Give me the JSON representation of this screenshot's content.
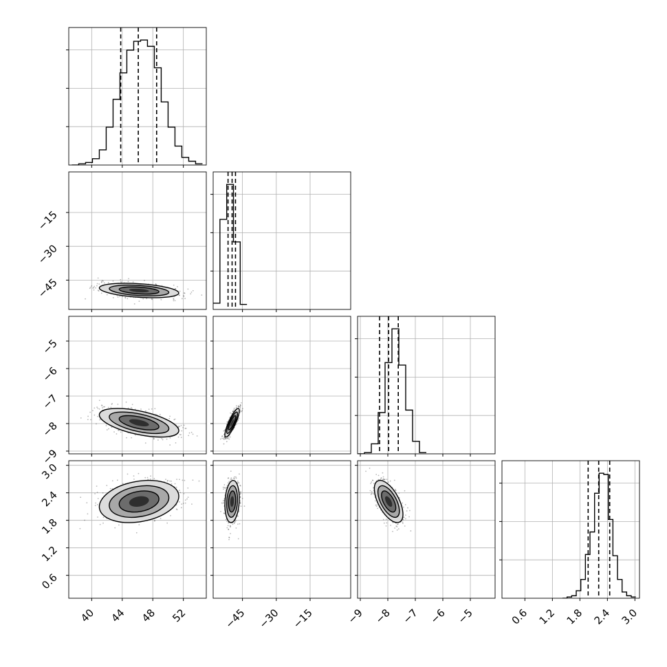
{
  "chart_data": {
    "type": "corner",
    "grid": true,
    "parameters": [
      {
        "range": [
          37,
          55
        ],
        "ticks": [
          40,
          44,
          48,
          52
        ],
        "tick_labels": [
          "40",
          "44",
          "48",
          "52"
        ],
        "quantiles": [
          43.8,
          46.1,
          48.5
        ]
      },
      {
        "range": [
          -58,
          3
        ],
        "ticks": [
          -45,
          -30,
          -15
        ],
        "tick_labels": [
          "−45",
          "−30",
          "−15"
        ],
        "quantiles": [
          -51.4,
          -49.6,
          -48.1
        ]
      },
      {
        "range": [
          -9.1,
          -4.1
        ],
        "ticks": [
          -9,
          -8,
          -7,
          -6,
          -5
        ],
        "tick_labels": [
          "−9",
          "−8",
          "−7",
          "−6",
          "−5"
        ],
        "quantiles": [
          -8.3,
          -7.97,
          -7.62
        ]
      },
      {
        "range": [
          0.1,
          3.1
        ],
        "ticks": [
          0.6,
          1.2,
          1.8,
          2.4,
          3.0
        ],
        "tick_labels": [
          "0.6",
          "1.2",
          "1.8",
          "2.4",
          "3.0"
        ],
        "quantiles": [
          1.98,
          2.21,
          2.45
        ]
      }
    ],
    "histograms": [
      {
        "param": 0,
        "bin_edges": [
          37.4,
          38.3,
          39.2,
          40.1,
          41.0,
          41.9,
          42.8,
          43.7,
          44.6,
          45.5,
          46.4,
          47.3,
          48.2,
          49.1,
          50.0,
          50.9,
          51.8,
          52.7,
          53.6,
          54.5
        ],
        "counts": [
          0,
          1,
          2,
          5,
          12,
          30,
          52,
          73,
          91,
          98,
          99,
          94,
          77,
          50,
          30,
          15,
          6,
          3,
          1
        ]
      },
      {
        "param": 1,
        "bin_edges": [
          -58,
          -55,
          -52,
          -49,
          -46,
          -43
        ],
        "counts": [
          5,
          72,
          100,
          54,
          4
        ]
      },
      {
        "param": 2,
        "bin_edges": [
          -9.1,
          -8.85,
          -8.6,
          -8.35,
          -8.1,
          -7.85,
          -7.6,
          -7.35,
          -7.1,
          -6.85,
          -6.6
        ],
        "counts": [
          0,
          1,
          8,
          33,
          73,
          100,
          71,
          35,
          10,
          1
        ]
      },
      {
        "param": 3,
        "bin_edges": [
          1.42,
          1.52,
          1.62,
          1.72,
          1.82,
          1.92,
          2.02,
          2.12,
          2.22,
          2.32,
          2.42,
          2.52,
          2.62,
          2.72,
          2.82,
          2.92,
          3.02
        ],
        "counts": [
          0,
          1,
          2,
          6,
          15,
          35,
          53,
          84,
          100,
          99,
          63,
          34,
          15,
          5,
          2,
          1
        ]
      }
    ],
    "joint_2d": [
      {
        "x_param": 0,
        "y_param": 1,
        "mean": [
          46.2,
          -49.6
        ],
        "sd": [
          2.6,
          1.6
        ],
        "rho": -0.35
      },
      {
        "x_param": 0,
        "y_param": 2,
        "mean": [
          46.2,
          -7.97
        ],
        "sd": [
          2.6,
          0.26
        ],
        "rho": -0.55
      },
      {
        "x_param": 1,
        "y_param": 2,
        "mean": [
          -49.6,
          -7.97
        ],
        "sd": [
          1.6,
          0.26
        ],
        "rho": 0.85
      },
      {
        "x_param": 0,
        "y_param": 3,
        "mean": [
          46.2,
          2.21
        ],
        "sd": [
          2.6,
          0.23
        ],
        "rho": 0.25
      },
      {
        "x_param": 1,
        "y_param": 3,
        "mean": [
          -49.6,
          2.21
        ],
        "sd": [
          1.6,
          0.23
        ],
        "rho": 0.15
      },
      {
        "x_param": 2,
        "y_param": 3,
        "mean": [
          -7.97,
          2.21
        ],
        "sd": [
          0.26,
          0.23
        ],
        "rho": -0.6
      }
    ],
    "contour_sigmas": [
      0.5,
      1.0,
      1.5,
      2.0
    ]
  }
}
